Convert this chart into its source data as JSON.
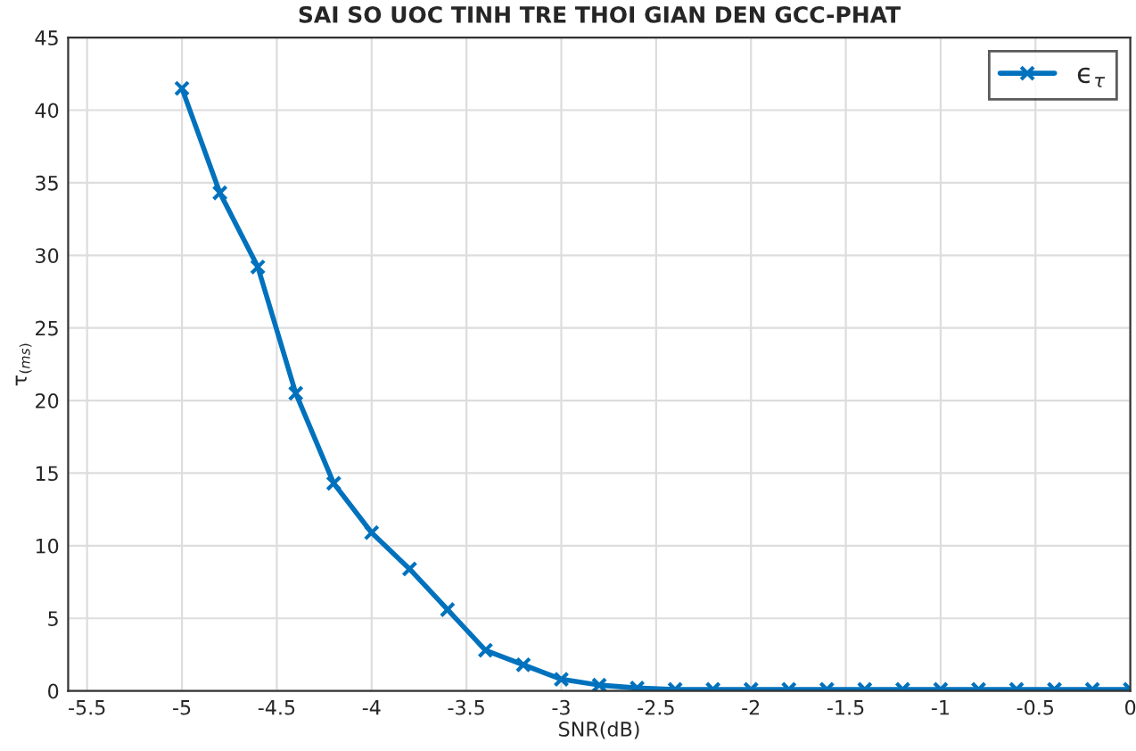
{
  "chart_data": {
    "type": "line",
    "title": "SAI SO UOC TINH TRE THOI GIAN DEN GCC-PHAT",
    "xlabel": "SNR(dB)",
    "ylabel": "τ$_{(ms)}$",
    "x": [
      -5,
      -4.8,
      -4.6,
      -4.4,
      -4.2,
      -4.0,
      -3.8,
      -3.6,
      -3.4,
      -3.2,
      -3.0,
      -2.8,
      -2.6,
      -2.4,
      -2.2,
      -2.0,
      -1.8,
      -1.6,
      -1.4,
      -1.2,
      -1.0,
      -0.8,
      -0.6,
      -0.4,
      -0.2,
      0
    ],
    "series": [
      {
        "name": "ϵ$_{τ}$",
        "color": "#0072bd",
        "values": [
          41.5,
          34.3,
          29.2,
          20.5,
          14.3,
          10.9,
          8.4,
          5.6,
          2.8,
          1.8,
          0.8,
          0.4,
          0.2,
          0.1,
          0.1,
          0.1,
          0.1,
          0.1,
          0.1,
          0.1,
          0.1,
          0.1,
          0.1,
          0.1,
          0.1,
          0.1
        ]
      }
    ],
    "xlim": [
      -5.6,
      0
    ],
    "xticks": [
      -5.5,
      -5,
      -4.5,
      -4,
      -3.5,
      -3,
      -2.5,
      -2,
      -1.5,
      -1,
      -0.5,
      0
    ],
    "ylim": [
      0,
      45
    ],
    "yticks": [
      0,
      5,
      10,
      15,
      20,
      25,
      30,
      35,
      40,
      45
    ],
    "grid": true,
    "legend": "top right",
    "marker": "cross",
    "line_style": "solid"
  }
}
